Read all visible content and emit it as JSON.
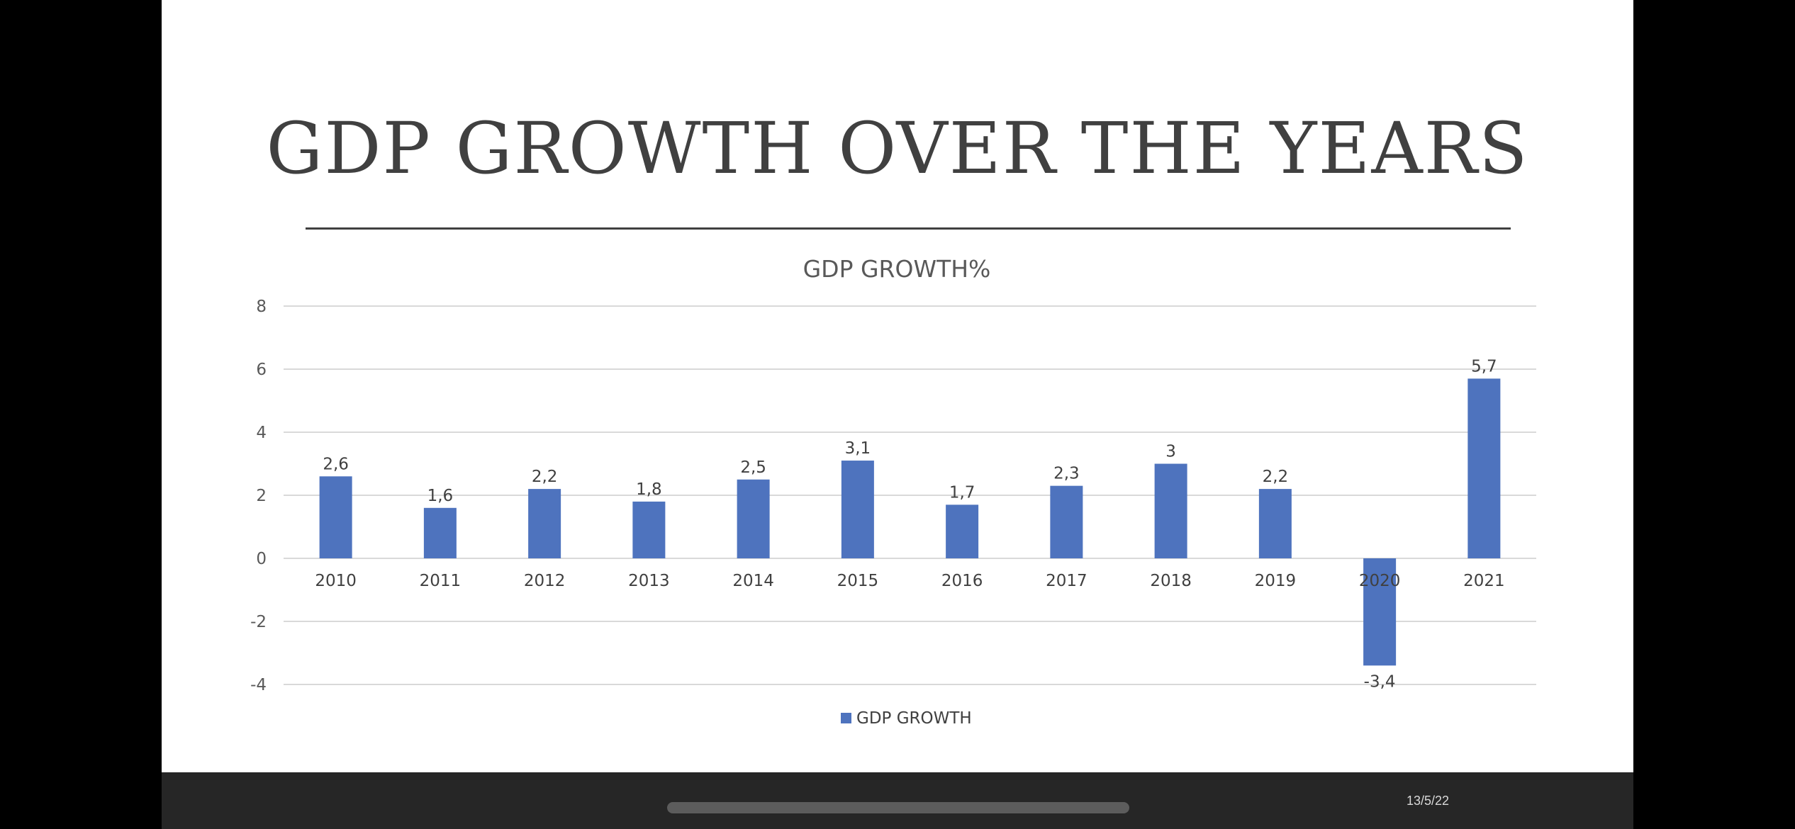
{
  "slide": {
    "title": "GDP GROWTH OVER THE YEARS"
  },
  "footer": {
    "date": "13/5/22"
  },
  "colors": {
    "bar": "#4E73BE",
    "text": "#404040",
    "grid": "#D9D9D9",
    "background": "#FFFFFF"
  },
  "chart_data": {
    "type": "bar",
    "title": "GDP GROWTH%",
    "xlabel": "",
    "ylabel": "",
    "categories": [
      "2010",
      "2011",
      "2012",
      "2013",
      "2014",
      "2015",
      "2016",
      "2017",
      "2018",
      "2019",
      "2020",
      "2021"
    ],
    "series": [
      {
        "name": "GDP GROWTH",
        "values": [
          2.6,
          1.6,
          2.2,
          1.8,
          2.5,
          3.1,
          1.7,
          2.3,
          3,
          2.2,
          -3.4,
          5.7
        ],
        "labels": [
          "2,6",
          "1,6",
          "2,2",
          "1,8",
          "2,5",
          "3,1",
          "1,7",
          "2,3",
          "3",
          "2,2",
          "-3,4",
          "5,7"
        ]
      }
    ],
    "ylim": [
      -4,
      8
    ],
    "yticks": [
      8,
      6,
      4,
      2,
      0,
      -2,
      -4
    ],
    "ytick_labels": [
      "8",
      "6",
      "4",
      "2",
      "0",
      "-2",
      "-4"
    ],
    "grid": true,
    "legend": "bottom"
  }
}
